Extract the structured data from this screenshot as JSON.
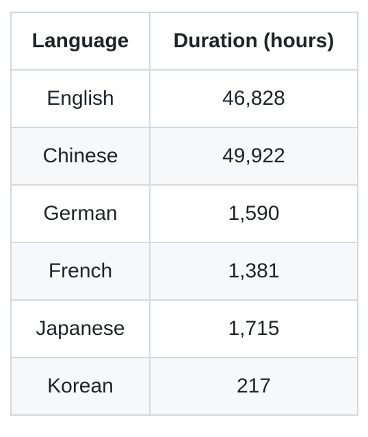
{
  "table": {
    "headers": [
      "Language",
      "Duration (hours)"
    ],
    "rows": [
      [
        "English",
        "46,828"
      ],
      [
        "Chinese",
        "49,922"
      ],
      [
        "German",
        "1,590"
      ],
      [
        "French",
        "1,381"
      ],
      [
        "Japanese",
        "1,715"
      ],
      [
        "Korean",
        "217"
      ]
    ]
  },
  "colors": {
    "border": "#d1d9e0",
    "row_alt_bg": "#f6f8fa",
    "text": "#1f2328"
  }
}
